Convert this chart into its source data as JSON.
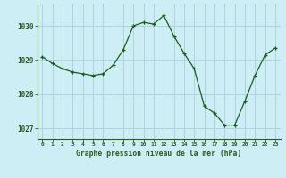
{
  "x": [
    0,
    1,
    2,
    3,
    4,
    5,
    6,
    7,
    8,
    9,
    10,
    11,
    12,
    13,
    14,
    15,
    16,
    17,
    18,
    19,
    20,
    21,
    22,
    23
  ],
  "y": [
    1029.1,
    1028.9,
    1028.75,
    1028.65,
    1028.6,
    1028.55,
    1028.6,
    1028.85,
    1029.3,
    1030.0,
    1030.1,
    1030.05,
    1030.3,
    1029.7,
    1029.2,
    1028.75,
    1027.65,
    1027.45,
    1027.1,
    1027.1,
    1027.8,
    1028.55,
    1029.15,
    1029.35
  ],
  "line_color": "#1a5c1a",
  "background_color": "#cdeef5",
  "grid_color": "#aad4dc",
  "axis_color": "#2d5a1e",
  "title": "Graphe pression niveau de la mer (hPa)",
  "ylabel_ticks": [
    1027,
    1028,
    1029,
    1030
  ],
  "xlim": [
    -0.5,
    23.5
  ],
  "ylim": [
    1026.7,
    1030.65
  ]
}
